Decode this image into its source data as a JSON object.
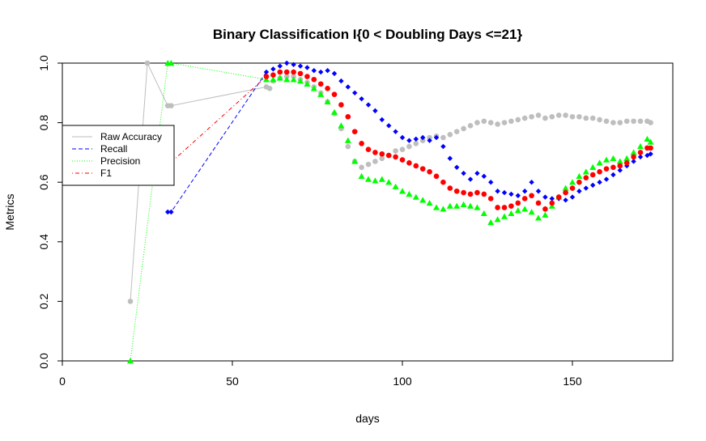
{
  "chart_data": {
    "type": "scatter",
    "title": "Binary Classification I{0 < Doubling Days <=21}",
    "xlabel": "days",
    "ylabel": "Metrics",
    "xlim": [
      0,
      180
    ],
    "ylim": [
      0,
      1
    ],
    "xticks": [
      "0",
      "50",
      "100",
      "150"
    ],
    "yticks": [
      "0.0",
      "0.2",
      "0.4",
      "0.6",
      "0.8",
      "1.0"
    ],
    "grid": false,
    "legend_position": "left",
    "series": [
      {
        "name": "Raw Accuracy",
        "color": "#bebebe",
        "marker": "circle",
        "line_style": "solid",
        "connect_until": 60,
        "points": [
          [
            20,
            0.2
          ],
          [
            25,
            1.0
          ],
          [
            31,
            0.857
          ],
          [
            32,
            0.857
          ],
          [
            60,
            0.92
          ],
          [
            61,
            0.915
          ],
          [
            62,
            0.94
          ],
          [
            64,
            0.95
          ],
          [
            66,
            0.955
          ],
          [
            68,
            0.955
          ],
          [
            70,
            0.945
          ],
          [
            72,
            0.935
          ],
          [
            74,
            0.92
          ],
          [
            76,
            0.9
          ],
          [
            78,
            0.87
          ],
          [
            80,
            0.83
          ],
          [
            82,
            0.78
          ],
          [
            84,
            0.72
          ],
          [
            86,
            0.67
          ],
          [
            88,
            0.65
          ],
          [
            90,
            0.66
          ],
          [
            92,
            0.67
          ],
          [
            94,
            0.68
          ],
          [
            96,
            0.69
          ],
          [
            98,
            0.705
          ],
          [
            100,
            0.71
          ],
          [
            102,
            0.72
          ],
          [
            104,
            0.73
          ],
          [
            106,
            0.74
          ],
          [
            108,
            0.75
          ],
          [
            110,
            0.755
          ],
          [
            112,
            0.75
          ],
          [
            114,
            0.76
          ],
          [
            116,
            0.77
          ],
          [
            118,
            0.78
          ],
          [
            120,
            0.79
          ],
          [
            122,
            0.8
          ],
          [
            124,
            0.805
          ],
          [
            126,
            0.8
          ],
          [
            128,
            0.795
          ],
          [
            130,
            0.8
          ],
          [
            132,
            0.805
          ],
          [
            134,
            0.81
          ],
          [
            136,
            0.815
          ],
          [
            138,
            0.82
          ],
          [
            140,
            0.825
          ],
          [
            142,
            0.815
          ],
          [
            144,
            0.82
          ],
          [
            146,
            0.825
          ],
          [
            148,
            0.825
          ],
          [
            150,
            0.82
          ],
          [
            152,
            0.82
          ],
          [
            154,
            0.815
          ],
          [
            156,
            0.815
          ],
          [
            158,
            0.81
          ],
          [
            160,
            0.805
          ],
          [
            162,
            0.8
          ],
          [
            164,
            0.8
          ],
          [
            166,
            0.805
          ],
          [
            168,
            0.805
          ],
          [
            170,
            0.805
          ],
          [
            172,
            0.805
          ],
          [
            173,
            0.8
          ]
        ]
      },
      {
        "name": "Recall",
        "color": "#0000ff",
        "marker": "diamond",
        "line_style": "dashed",
        "connect_until": 60,
        "points": [
          [
            31,
            0.5
          ],
          [
            32,
            0.5
          ],
          [
            60,
            0.97
          ],
          [
            62,
            0.98
          ],
          [
            64,
            0.99
          ],
          [
            66,
            1.0
          ],
          [
            68,
            0.995
          ],
          [
            70,
            0.99
          ],
          [
            72,
            0.985
          ],
          [
            74,
            0.975
          ],
          [
            76,
            0.97
          ],
          [
            78,
            0.975
          ],
          [
            80,
            0.965
          ],
          [
            82,
            0.94
          ],
          [
            84,
            0.92
          ],
          [
            86,
            0.9
          ],
          [
            88,
            0.88
          ],
          [
            90,
            0.86
          ],
          [
            92,
            0.84
          ],
          [
            94,
            0.81
          ],
          [
            96,
            0.79
          ],
          [
            98,
            0.77
          ],
          [
            100,
            0.75
          ],
          [
            102,
            0.74
          ],
          [
            104,
            0.745
          ],
          [
            106,
            0.75
          ],
          [
            108,
            0.74
          ],
          [
            110,
            0.75
          ],
          [
            112,
            0.72
          ],
          [
            114,
            0.68
          ],
          [
            116,
            0.65
          ],
          [
            118,
            0.63
          ],
          [
            120,
            0.61
          ],
          [
            122,
            0.63
          ],
          [
            124,
            0.62
          ],
          [
            126,
            0.6
          ],
          [
            128,
            0.57
          ],
          [
            130,
            0.565
          ],
          [
            132,
            0.56
          ],
          [
            134,
            0.555
          ],
          [
            136,
            0.57
          ],
          [
            138,
            0.6
          ],
          [
            140,
            0.57
          ],
          [
            142,
            0.55
          ],
          [
            144,
            0.545
          ],
          [
            146,
            0.545
          ],
          [
            148,
            0.54
          ],
          [
            150,
            0.55
          ],
          [
            152,
            0.57
          ],
          [
            154,
            0.58
          ],
          [
            156,
            0.59
          ],
          [
            158,
            0.6
          ],
          [
            160,
            0.61
          ],
          [
            162,
            0.625
          ],
          [
            164,
            0.64
          ],
          [
            166,
            0.655
          ],
          [
            168,
            0.67
          ],
          [
            170,
            0.685
          ],
          [
            172,
            0.69
          ],
          [
            173,
            0.695
          ]
        ]
      },
      {
        "name": "Precision",
        "color": "#00ff00",
        "marker": "triangle",
        "line_style": "dotted",
        "connect_until": 60,
        "points": [
          [
            20,
            0.0
          ],
          [
            31,
            1.0
          ],
          [
            32,
            1.0
          ],
          [
            60,
            0.945
          ],
          [
            62,
            0.945
          ],
          [
            64,
            0.95
          ],
          [
            66,
            0.945
          ],
          [
            68,
            0.945
          ],
          [
            70,
            0.94
          ],
          [
            72,
            0.93
          ],
          [
            74,
            0.915
          ],
          [
            76,
            0.895
          ],
          [
            78,
            0.87
          ],
          [
            80,
            0.835
          ],
          [
            82,
            0.79
          ],
          [
            84,
            0.74
          ],
          [
            86,
            0.67
          ],
          [
            88,
            0.62
          ],
          [
            90,
            0.61
          ],
          [
            92,
            0.605
          ],
          [
            94,
            0.61
          ],
          [
            96,
            0.6
          ],
          [
            98,
            0.585
          ],
          [
            100,
            0.57
          ],
          [
            102,
            0.56
          ],
          [
            104,
            0.55
          ],
          [
            106,
            0.54
          ],
          [
            108,
            0.53
          ],
          [
            110,
            0.515
          ],
          [
            112,
            0.51
          ],
          [
            114,
            0.52
          ],
          [
            116,
            0.52
          ],
          [
            118,
            0.525
          ],
          [
            120,
            0.52
          ],
          [
            122,
            0.515
          ],
          [
            124,
            0.495
          ],
          [
            126,
            0.465
          ],
          [
            128,
            0.475
          ],
          [
            130,
            0.485
          ],
          [
            132,
            0.495
          ],
          [
            134,
            0.505
          ],
          [
            136,
            0.51
          ],
          [
            138,
            0.5
          ],
          [
            140,
            0.48
          ],
          [
            142,
            0.49
          ],
          [
            144,
            0.52
          ],
          [
            146,
            0.55
          ],
          [
            148,
            0.58
          ],
          [
            150,
            0.6
          ],
          [
            152,
            0.62
          ],
          [
            154,
            0.635
          ],
          [
            156,
            0.65
          ],
          [
            158,
            0.665
          ],
          [
            160,
            0.675
          ],
          [
            162,
            0.68
          ],
          [
            164,
            0.67
          ],
          [
            166,
            0.68
          ],
          [
            168,
            0.7
          ],
          [
            170,
            0.72
          ],
          [
            172,
            0.745
          ],
          [
            173,
            0.735
          ]
        ]
      },
      {
        "name": "F1",
        "color": "#ff0000",
        "marker": "circle",
        "line_style": "dotdash",
        "connect_until": 60,
        "points": [
          [
            31,
            0.667
          ],
          [
            32,
            0.667
          ],
          [
            60,
            0.955
          ],
          [
            62,
            0.96
          ],
          [
            64,
            0.97
          ],
          [
            66,
            0.97
          ],
          [
            68,
            0.97
          ],
          [
            70,
            0.965
          ],
          [
            72,
            0.955
          ],
          [
            74,
            0.945
          ],
          [
            76,
            0.93
          ],
          [
            78,
            0.915
          ],
          [
            80,
            0.895
          ],
          [
            82,
            0.86
          ],
          [
            84,
            0.82
          ],
          [
            86,
            0.77
          ],
          [
            88,
            0.73
          ],
          [
            90,
            0.71
          ],
          [
            92,
            0.7
          ],
          [
            94,
            0.695
          ],
          [
            96,
            0.69
          ],
          [
            98,
            0.685
          ],
          [
            100,
            0.675
          ],
          [
            102,
            0.665
          ],
          [
            104,
            0.655
          ],
          [
            106,
            0.645
          ],
          [
            108,
            0.635
          ],
          [
            110,
            0.62
          ],
          [
            112,
            0.6
          ],
          [
            114,
            0.58
          ],
          [
            116,
            0.57
          ],
          [
            118,
            0.565
          ],
          [
            120,
            0.56
          ],
          [
            122,
            0.565
          ],
          [
            124,
            0.56
          ],
          [
            126,
            0.545
          ],
          [
            128,
            0.515
          ],
          [
            130,
            0.515
          ],
          [
            132,
            0.52
          ],
          [
            134,
            0.53
          ],
          [
            136,
            0.545
          ],
          [
            138,
            0.555
          ],
          [
            140,
            0.53
          ],
          [
            142,
            0.51
          ],
          [
            144,
            0.53
          ],
          [
            146,
            0.55
          ],
          [
            148,
            0.565
          ],
          [
            150,
            0.58
          ],
          [
            152,
            0.6
          ],
          [
            154,
            0.615
          ],
          [
            156,
            0.625
          ],
          [
            158,
            0.635
          ],
          [
            160,
            0.645
          ],
          [
            162,
            0.65
          ],
          [
            164,
            0.655
          ],
          [
            166,
            0.665
          ],
          [
            168,
            0.685
          ],
          [
            170,
            0.7
          ],
          [
            172,
            0.715
          ],
          [
            173,
            0.715
          ]
        ]
      }
    ]
  }
}
